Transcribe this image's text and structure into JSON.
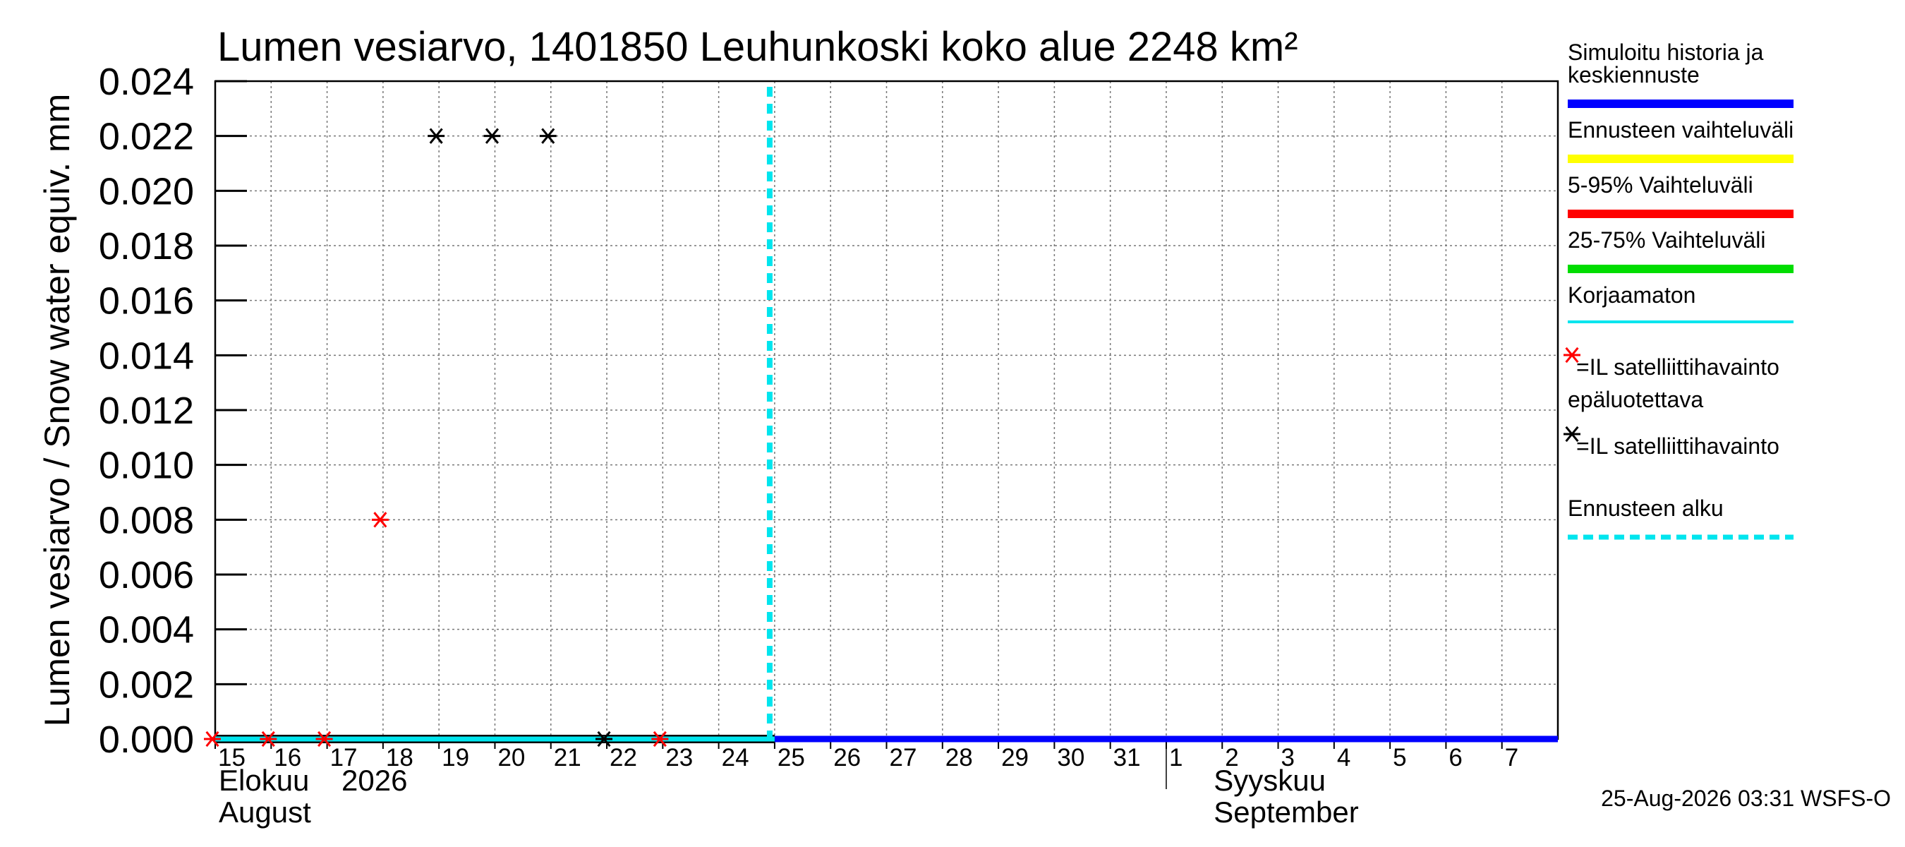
{
  "chart_data": {
    "type": "line",
    "title": "Lumen vesiarvo, 1401850 Leuhunkoski koko alue 2248 km²",
    "ylabel": "Lumen vesiarvo / Snow water equiv.   mm",
    "ylim": [
      0,
      0.024
    ],
    "yticks": [
      "0.000",
      "0.002",
      "0.004",
      "0.006",
      "0.008",
      "0.010",
      "0.012",
      "0.014",
      "0.016",
      "0.018",
      "0.020",
      "0.022",
      "0.024"
    ],
    "xlim": [
      "2026-08-15",
      "2026-09-08"
    ],
    "xticks": [
      "15",
      "16",
      "17",
      "18",
      "19",
      "20",
      "21",
      "22",
      "23",
      "24",
      "25",
      "26",
      "27",
      "28",
      "29",
      "30",
      "31",
      "1",
      "2",
      "3",
      "4",
      "5",
      "6",
      "7"
    ],
    "month_labels": [
      {
        "fi": "Elokuu",
        "en": "August",
        "year": "2026"
      },
      {
        "fi": "Syyskuu",
        "en": "September"
      }
    ],
    "grid": true,
    "legend_position": "right",
    "forecast_start": "2026-08-25",
    "series": [
      {
        "name": "Simuloitu historia ja keskiennuste",
        "color": "#0000ff",
        "x": [
          "2026-08-15",
          "2026-09-08"
        ],
        "y": [
          0,
          0
        ]
      },
      {
        "name": "Korjaamaton",
        "color": "#00e5ee",
        "x": [
          "2026-08-15",
          "2026-08-25"
        ],
        "y": [
          0,
          0
        ]
      }
    ],
    "observations_red": [
      {
        "x": "2026-08-15",
        "y": 0
      },
      {
        "x": "2026-08-16",
        "y": 0
      },
      {
        "x": "2026-08-17",
        "y": 0
      },
      {
        "x": "2026-08-18",
        "y": 0.008
      },
      {
        "x": "2026-08-23",
        "y": 0
      }
    ],
    "observations_black": [
      {
        "x": "2026-08-19",
        "y": 0.022
      },
      {
        "x": "2026-08-20",
        "y": 0.022
      },
      {
        "x": "2026-08-21",
        "y": 0.022
      },
      {
        "x": "2026-08-22",
        "y": 0
      }
    ],
    "legend": [
      {
        "label": "Simuloitu historia ja keskiennuste",
        "lines": [
          "Simuloitu historia ja",
          "keskiennuste"
        ],
        "kind": "line",
        "color": "#0000ff"
      },
      {
        "label": "Ennusteen vaihteluväli",
        "lines": [
          "Ennusteen vaihteluväli"
        ],
        "kind": "line",
        "color": "#ffff00"
      },
      {
        "label": "5-95% Vaihteluväli",
        "lines": [
          "5-95% Vaihteluväli"
        ],
        "kind": "line",
        "color": "#ff0000"
      },
      {
        "label": "25-75% Vaihteluväli",
        "lines": [
          "25-75% Vaihteluväli"
        ],
        "kind": "line",
        "color": "#00dd00"
      },
      {
        "label": "Korjaamaton",
        "lines": [
          "Korjaamaton"
        ],
        "kind": "thin",
        "color": "#00e5ee"
      },
      {
        "label": "=IL satelliittihavainto",
        "lines": [
          "=IL satelliittihavainto"
        ],
        "kind": "star",
        "color": "#ff0000"
      },
      {
        "label": "epäluotettava =IL satelliittihavainto",
        "lines": [
          "epäluotettava",
          "=IL satelliittihavainto"
        ],
        "kind": "star",
        "color": "#000000"
      },
      {
        "label": "Ennusteen alku",
        "lines": [
          "Ennusteen alku"
        ],
        "kind": "dash",
        "color": "#00e5ee"
      }
    ],
    "timestamp": "25-Aug-2026 03:31 WSFS-O"
  }
}
